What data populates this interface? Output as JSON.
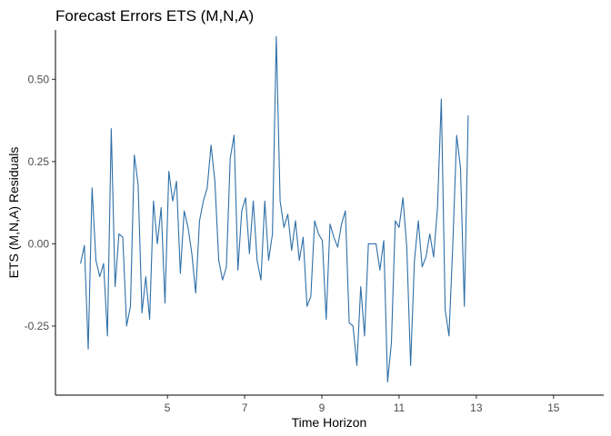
{
  "chart_data": {
    "type": "line",
    "title": "Forecast Errors ETS (M,N,A)",
    "xlabel": "Time Horizon",
    "ylabel": "ETS (M,N,A) Residuals",
    "xlim": [
      2.1,
      16.3
    ],
    "ylim": [
      -0.46,
      0.65
    ],
    "x_ticks": [
      5,
      7,
      9,
      11,
      13,
      15
    ],
    "y_ticks": [
      -0.25,
      0.0,
      0.25,
      0.5
    ],
    "x_tick_labels": [
      "5",
      "7",
      "9",
      "11",
      "13",
      "15"
    ],
    "y_tick_labels": [
      "-0.25",
      "0.00",
      "0.25",
      "0.50"
    ],
    "grid": false,
    "legend": "none",
    "x_start": 2.75,
    "x_step": 0.0994,
    "series": [
      {
        "color": "#2e6fa7",
        "values": [
          -0.06,
          -0.005,
          -0.32,
          0.17,
          -0.05,
          -0.1,
          -0.06,
          -0.28,
          0.35,
          -0.13,
          0.03,
          0.02,
          -0.25,
          -0.19,
          0.27,
          0.18,
          -0.21,
          -0.1,
          -0.23,
          0.13,
          0.0,
          0.11,
          -0.18,
          0.22,
          0.13,
          0.19,
          -0.09,
          0.1,
          0.05,
          -0.03,
          -0.15,
          0.07,
          0.13,
          0.17,
          0.3,
          0.19,
          -0.05,
          -0.11,
          -0.07,
          0.26,
          0.33,
          -0.08,
          0.1,
          0.14,
          -0.03,
          0.13,
          -0.05,
          -0.11,
          0.13,
          -0.05,
          0.03,
          0.63,
          0.13,
          0.05,
          0.09,
          -0.02,
          0.07,
          -0.05,
          0.02,
          -0.19,
          -0.16,
          0.07,
          0.03,
          0.01,
          -0.23,
          0.06,
          0.02,
          -0.01,
          0.06,
          0.1,
          -0.24,
          -0.25,
          -0.37,
          -0.13,
          -0.28,
          0.0,
          0.0,
          0.0,
          -0.08,
          0.01,
          -0.42,
          -0.3,
          0.07,
          0.05,
          0.14,
          -0.01,
          -0.37,
          -0.05,
          0.07,
          -0.07,
          -0.04,
          0.03,
          -0.04,
          0.11,
          0.44,
          -0.2,
          -0.28,
          0.0,
          0.33,
          0.23,
          -0.19,
          0.39
        ]
      }
    ]
  }
}
